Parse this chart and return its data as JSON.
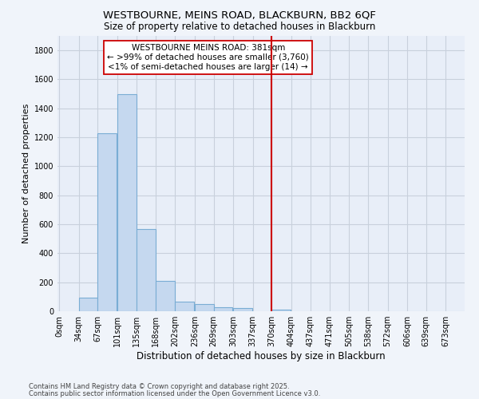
{
  "title": "WESTBOURNE, MEINS ROAD, BLACKBURN, BB2 6QF",
  "subtitle": "Size of property relative to detached houses in Blackburn",
  "xlabel": "Distribution of detached houses by size in Blackburn",
  "ylabel": "Number of detached properties",
  "bin_labels": [
    "0sqm",
    "34sqm",
    "67sqm",
    "101sqm",
    "135sqm",
    "168sqm",
    "202sqm",
    "236sqm",
    "269sqm",
    "303sqm",
    "337sqm",
    "370sqm",
    "404sqm",
    "437sqm",
    "471sqm",
    "505sqm",
    "538sqm",
    "572sqm",
    "606sqm",
    "639sqm",
    "673sqm"
  ],
  "bar_values": [
    0,
    95,
    1230,
    1500,
    565,
    210,
    65,
    48,
    30,
    20,
    0,
    10,
    0,
    0,
    0,
    0,
    0,
    0,
    0,
    0
  ],
  "bar_color": "#c5d8ef",
  "bar_edge_color": "#7aadd4",
  "vline_color": "#cc0000",
  "ylim": [
    0,
    1900
  ],
  "yticks": [
    0,
    200,
    400,
    600,
    800,
    1000,
    1200,
    1400,
    1600,
    1800
  ],
  "annotation_title": "WESTBOURNE MEINS ROAD: 381sqm",
  "annotation_line1": "← >99% of detached houses are smaller (3,760)",
  "annotation_line2": "<1% of semi-detached houses are larger (14) →",
  "footnote1": "Contains HM Land Registry data © Crown copyright and database right 2025.",
  "footnote2": "Contains public sector information licensed under the Open Government Licence v3.0.",
  "background_color": "#f0f4fa",
  "plot_bg_color": "#e8eef8",
  "grid_color": "#c8d0dc",
  "bin_starts": [
    0,
    34,
    67,
    101,
    135,
    168,
    202,
    236,
    269,
    303,
    337,
    370,
    404,
    437,
    471,
    505,
    538,
    572,
    606,
    639
  ],
  "bin_width": 33,
  "vline_x_index": 11,
  "title_fontsize": 9.5,
  "subtitle_fontsize": 8.5,
  "xlabel_fontsize": 8.5,
  "ylabel_fontsize": 8,
  "tick_fontsize": 7,
  "annot_fontsize": 7.5,
  "footnote_fontsize": 6
}
